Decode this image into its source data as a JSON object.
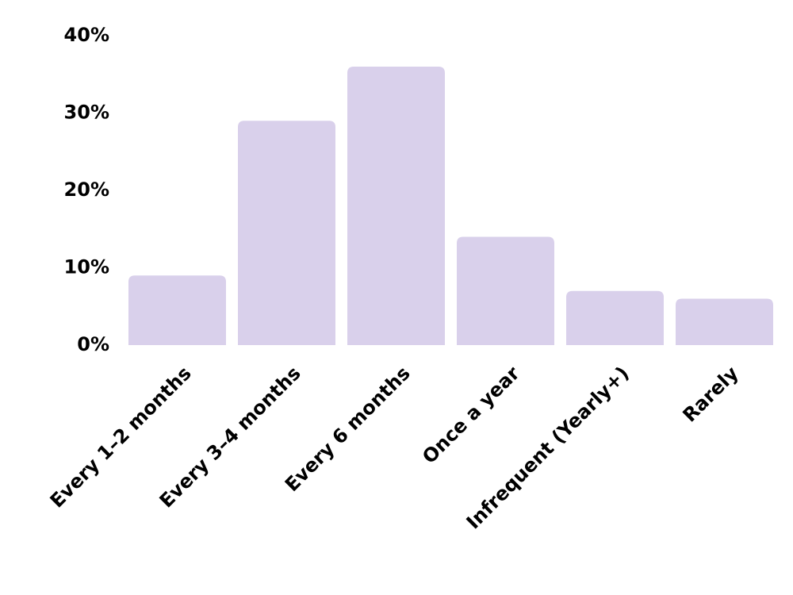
{
  "chart_data": {
    "type": "bar",
    "categories": [
      "Every 1–2 months",
      "Every 3–4 months",
      "Every 6 months",
      "Once a year",
      "Infrequent (Yearly+)",
      "Rarely"
    ],
    "values": [
      9,
      29,
      36,
      14,
      7,
      6
    ],
    "color": "#d9d0eb",
    "ylim": [
      0,
      40
    ],
    "yticks": [
      {
        "value": 0,
        "label": "0%"
      },
      {
        "value": 10,
        "label": "10%"
      },
      {
        "value": 20,
        "label": "20%"
      },
      {
        "value": 30,
        "label": "30%"
      },
      {
        "value": 40,
        "label": "40%"
      }
    ],
    "grid": false
  }
}
